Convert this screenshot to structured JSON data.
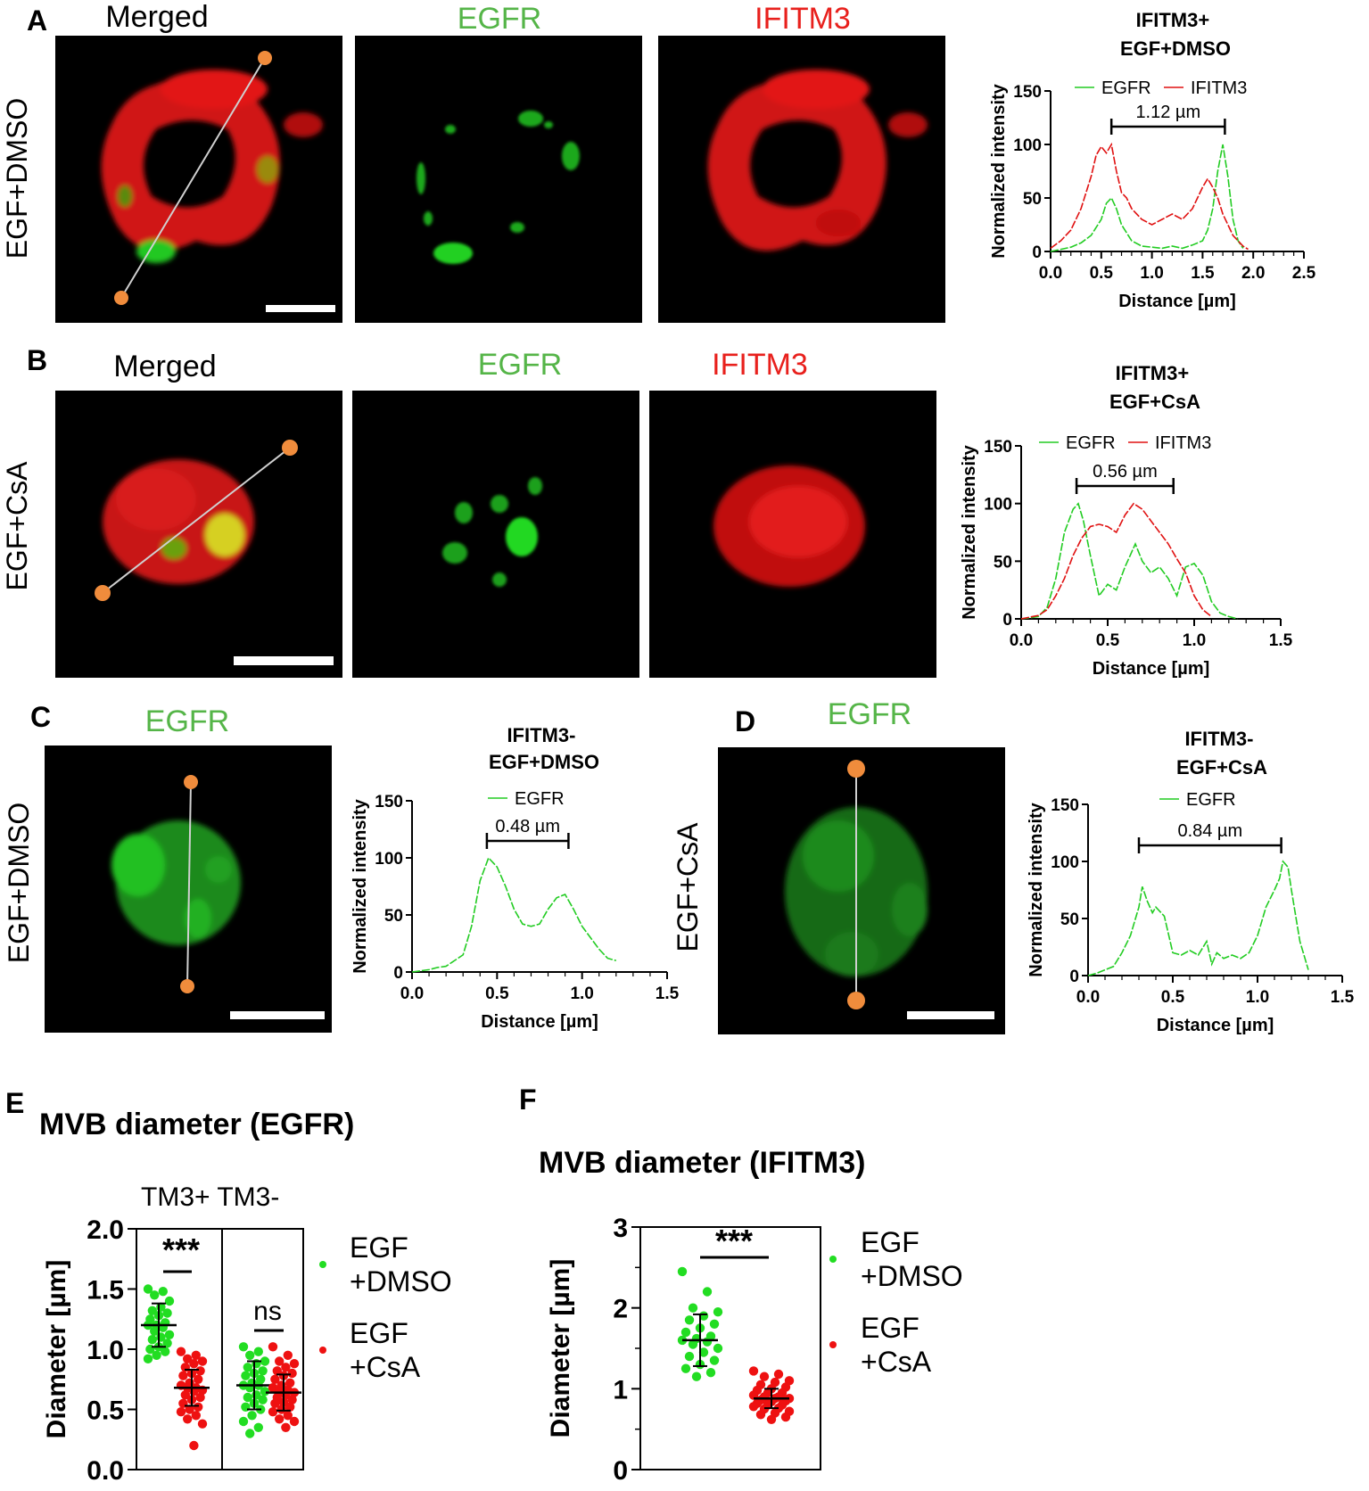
{
  "colors": {
    "egfr": "#22cc22",
    "ifitm3": "#e01010",
    "marker": "#f08c3c",
    "dmso_dot": "#22dd22",
    "csa_dot": "#ee1111"
  },
  "panels": {
    "A": {
      "label": "A",
      "side_label": "EGF+DMSO",
      "channels": {
        "merged": "Merged",
        "egfr": "EGFR",
        "ifitm3": "IFITM3"
      },
      "chart_title": [
        "IFITM3+",
        "EGF+DMSO"
      ],
      "span_label": "1.12 µm"
    },
    "B": {
      "label": "B",
      "side_label": "EGF+CsA",
      "channels": {
        "merged": "Merged",
        "egfr": "EGFR",
        "ifitm3": "IFITM3"
      },
      "chart_title": [
        "IFITM3+",
        "EGF+CsA"
      ],
      "span_label": "0.56 µm"
    },
    "C": {
      "label": "C",
      "side_label": "EGF+DMSO",
      "channel": "EGFR",
      "chart_title": [
        "IFITM3-",
        "EGF+DMSO"
      ],
      "span_label": "0.48 µm"
    },
    "D": {
      "label": "D",
      "side_label": "EGF+CsA",
      "channel": "EGFR",
      "chart_title": [
        "IFITM3-",
        "EGF+CsA"
      ],
      "span_label": "0.84 µm"
    },
    "E": {
      "label": "E",
      "title": "MVB diameter (EGFR)",
      "group_header": "TM3+ TM3-",
      "sig": [
        "***",
        "ns"
      ],
      "legend": [
        [
          "EGF",
          "+DMSO"
        ],
        [
          "EGF",
          "+CsA"
        ]
      ]
    },
    "F": {
      "label": "F",
      "title": "MVB diameter (IFITM3)",
      "sig": [
        "***"
      ],
      "legend": [
        [
          "EGF",
          "+DMSO"
        ],
        [
          "EGF",
          "+CsA"
        ]
      ]
    }
  },
  "chart_data": [
    {
      "id": "A",
      "type": "line",
      "title": "",
      "xlabel": "Distance [µm]",
      "ylabel": "Normalized intensity",
      "xlim": [
        0,
        2.5
      ],
      "ylim": [
        0,
        150
      ],
      "xticks": [
        "0.0",
        "0.5",
        "1.0",
        "1.5",
        "2.0",
        "2.5"
      ],
      "yticks": [
        "0",
        "50",
        "100",
        "150"
      ],
      "legend_position": "top",
      "series": [
        {
          "name": "EGFR",
          "color": "#22cc22",
          "x": [
            0,
            0.1,
            0.2,
            0.3,
            0.4,
            0.5,
            0.55,
            0.6,
            0.65,
            0.7,
            0.8,
            0.9,
            1.0,
            1.1,
            1.2,
            1.3,
            1.4,
            1.5,
            1.55,
            1.6,
            1.65,
            1.7,
            1.75,
            1.8,
            1.85,
            1.9
          ],
          "y": [
            0,
            2,
            4,
            8,
            15,
            30,
            45,
            50,
            40,
            25,
            10,
            5,
            4,
            3,
            5,
            3,
            6,
            10,
            20,
            40,
            75,
            100,
            70,
            30,
            10,
            3
          ]
        },
        {
          "name": "IFITM3",
          "color": "#e01010",
          "x": [
            0,
            0.1,
            0.2,
            0.3,
            0.4,
            0.45,
            0.5,
            0.55,
            0.6,
            0.65,
            0.7,
            0.75,
            0.8,
            0.9,
            1.0,
            1.1,
            1.2,
            1.3,
            1.4,
            1.45,
            1.5,
            1.55,
            1.6,
            1.65,
            1.7,
            1.8,
            1.9,
            1.95
          ],
          "y": [
            3,
            10,
            20,
            40,
            70,
            90,
            98,
            92,
            100,
            75,
            55,
            50,
            40,
            30,
            25,
            30,
            35,
            30,
            40,
            50,
            60,
            68,
            60,
            50,
            35,
            15,
            5,
            2
          ]
        }
      ],
      "span": [
        0.6,
        1.72
      ]
    },
    {
      "id": "B",
      "type": "line",
      "title": "",
      "xlabel": "Distance [µm]",
      "ylabel": "Normalized intensity",
      "xlim": [
        0,
        1.5
      ],
      "ylim": [
        0,
        150
      ],
      "xticks": [
        "0.0",
        "0.5",
        "1.0",
        "1.5"
      ],
      "yticks": [
        "0",
        "50",
        "100",
        "150"
      ],
      "legend_position": "top",
      "series": [
        {
          "name": "EGFR",
          "color": "#22cc22",
          "x": [
            0,
            0.1,
            0.15,
            0.2,
            0.25,
            0.3,
            0.33,
            0.36,
            0.4,
            0.45,
            0.5,
            0.55,
            0.6,
            0.63,
            0.66,
            0.7,
            0.75,
            0.8,
            0.85,
            0.9,
            0.95,
            1.0,
            1.05,
            1.1,
            1.15,
            1.2,
            1.25
          ],
          "y": [
            0,
            2,
            10,
            35,
            75,
            95,
            100,
            85,
            55,
            20,
            30,
            25,
            45,
            55,
            65,
            50,
            40,
            45,
            35,
            20,
            45,
            48,
            38,
            15,
            5,
            2,
            0
          ]
        },
        {
          "name": "IFITM3",
          "color": "#e01010",
          "x": [
            0,
            0.1,
            0.15,
            0.2,
            0.25,
            0.3,
            0.35,
            0.4,
            0.45,
            0.5,
            0.55,
            0.6,
            0.65,
            0.7,
            0.75,
            0.8,
            0.85,
            0.9,
            0.95,
            1.0,
            1.05,
            1.1
          ],
          "y": [
            0,
            3,
            8,
            20,
            35,
            55,
            70,
            80,
            82,
            80,
            75,
            90,
            100,
            95,
            85,
            75,
            65,
            52,
            40,
            20,
            8,
            2
          ]
        }
      ],
      "span": [
        0.32,
        0.88
      ]
    },
    {
      "id": "C",
      "type": "line",
      "title": "",
      "xlabel": "Distance [µm]",
      "ylabel": "Normalized intensity",
      "xlim": [
        0,
        1.5
      ],
      "ylim": [
        0,
        150
      ],
      "xticks": [
        "0.0",
        "0.5",
        "1.0",
        "1.5"
      ],
      "yticks": [
        "0",
        "50",
        "100",
        "150"
      ],
      "legend_position": "top",
      "series": [
        {
          "name": "EGFR",
          "color": "#22cc22",
          "x": [
            0,
            0.1,
            0.15,
            0.2,
            0.3,
            0.35,
            0.4,
            0.45,
            0.5,
            0.55,
            0.6,
            0.65,
            0.7,
            0.75,
            0.8,
            0.85,
            0.9,
            0.95,
            1.0,
            1.05,
            1.1,
            1.15,
            1.2
          ],
          "y": [
            0,
            2,
            4,
            5,
            15,
            40,
            80,
            100,
            92,
            75,
            55,
            42,
            40,
            42,
            55,
            65,
            68,
            55,
            40,
            30,
            20,
            12,
            10
          ]
        }
      ],
      "span": [
        0.44,
        0.92
      ]
    },
    {
      "id": "D",
      "type": "line",
      "title": "",
      "xlabel": "Distance [µm]",
      "ylabel": "Normalized intensity",
      "xlim": [
        0,
        1.5
      ],
      "ylim": [
        0,
        150
      ],
      "xticks": [
        "0.0",
        "0.5",
        "1.0",
        "1.5"
      ],
      "yticks": [
        "0",
        "50",
        "100",
        "150"
      ],
      "legend_position": "top",
      "series": [
        {
          "name": "EGFR",
          "color": "#22cc22",
          "x": [
            0,
            0.05,
            0.1,
            0.15,
            0.2,
            0.25,
            0.3,
            0.32,
            0.35,
            0.38,
            0.4,
            0.45,
            0.5,
            0.55,
            0.6,
            0.65,
            0.7,
            0.73,
            0.76,
            0.8,
            0.85,
            0.9,
            0.95,
            1.0,
            1.05,
            1.1,
            1.13,
            1.15,
            1.18,
            1.2,
            1.25,
            1.3
          ],
          "y": [
            0,
            2,
            5,
            8,
            20,
            35,
            60,
            78,
            65,
            55,
            60,
            52,
            20,
            18,
            22,
            18,
            30,
            10,
            20,
            15,
            18,
            15,
            20,
            35,
            60,
            75,
            85,
            100,
            95,
            75,
            30,
            5
          ]
        }
      ],
      "span": [
        0.3,
        1.14
      ]
    },
    {
      "id": "E",
      "type": "scatter",
      "title": "MVB diameter (EGFR)",
      "xlabel": "",
      "ylabel": "Diameter [µm]",
      "ylim": [
        0,
        2
      ],
      "yticks": [
        "0.0",
        "0.5",
        "1.0",
        "1.5",
        "2.0"
      ],
      "categories": [
        "TM3+",
        "TM3-"
      ],
      "legend_position": "right",
      "series": [
        {
          "name": "EGF +DMSO",
          "color": "#22dd22",
          "groups": [
            {
              "category": "TM3+",
              "mean": 1.2,
              "sd": 0.18,
              "points": [
                1.5,
                1.48,
                1.45,
                1.4,
                1.35,
                1.32,
                1.3,
                1.28,
                1.25,
                1.22,
                1.2,
                1.2,
                1.18,
                1.15,
                1.12,
                1.1,
                1.08,
                1.05,
                1.02,
                1.0,
                0.98,
                0.95,
                0.92
              ]
            },
            {
              "category": "TM3-",
              "mean": 0.7,
              "sd": 0.2,
              "points": [
                1.02,
                0.98,
                0.95,
                0.9,
                0.88,
                0.85,
                0.82,
                0.8,
                0.78,
                0.75,
                0.72,
                0.7,
                0.7,
                0.68,
                0.65,
                0.62,
                0.6,
                0.58,
                0.55,
                0.52,
                0.5,
                0.45,
                0.4,
                0.35,
                0.3
              ]
            }
          ]
        },
        {
          "name": "EGF +CsA",
          "color": "#ee1111",
          "groups": [
            {
              "category": "TM3+",
              "mean": 0.68,
              "sd": 0.15,
              "points": [
                0.98,
                0.95,
                0.92,
                0.9,
                0.88,
                0.85,
                0.82,
                0.8,
                0.78,
                0.75,
                0.72,
                0.7,
                0.68,
                0.68,
                0.66,
                0.65,
                0.62,
                0.6,
                0.58,
                0.55,
                0.52,
                0.5,
                0.48,
                0.45,
                0.42,
                0.38,
                0.2
              ]
            },
            {
              "category": "TM3-",
              "mean": 0.64,
              "sd": 0.15,
              "points": [
                1.02,
                0.95,
                0.9,
                0.88,
                0.85,
                0.82,
                0.8,
                0.78,
                0.75,
                0.72,
                0.7,
                0.68,
                0.66,
                0.65,
                0.64,
                0.62,
                0.6,
                0.58,
                0.56,
                0.55,
                0.52,
                0.5,
                0.48,
                0.45,
                0.42,
                0.4,
                0.35
              ]
            }
          ]
        }
      ]
    },
    {
      "id": "F",
      "type": "scatter",
      "title": "MVB diameter (IFITM3)",
      "xlabel": "",
      "ylabel": "Diameter [µm]",
      "ylim": [
        0,
        3
      ],
      "yticks": [
        "0",
        "1",
        "2",
        "3"
      ],
      "legend_position": "right",
      "series": [
        {
          "name": "EGF +DMSO",
          "color": "#22dd22",
          "mean": 1.6,
          "sd": 0.32,
          "points": [
            2.45,
            2.2,
            2.0,
            1.95,
            1.9,
            1.85,
            1.8,
            1.75,
            1.7,
            1.65,
            1.62,
            1.6,
            1.58,
            1.55,
            1.5,
            1.45,
            1.4,
            1.35,
            1.3,
            1.25,
            1.2,
            1.15
          ]
        },
        {
          "name": "EGF +CsA",
          "color": "#ee1111",
          "mean": 0.88,
          "sd": 0.12,
          "points": [
            1.22,
            1.18,
            1.15,
            1.1,
            1.08,
            1.05,
            1.02,
            1.0,
            0.98,
            0.95,
            0.95,
            0.92,
            0.9,
            0.9,
            0.88,
            0.88,
            0.86,
            0.85,
            0.84,
            0.82,
            0.8,
            0.8,
            0.78,
            0.76,
            0.75,
            0.72,
            0.7,
            0.68,
            0.65,
            0.62
          ]
        }
      ]
    }
  ]
}
